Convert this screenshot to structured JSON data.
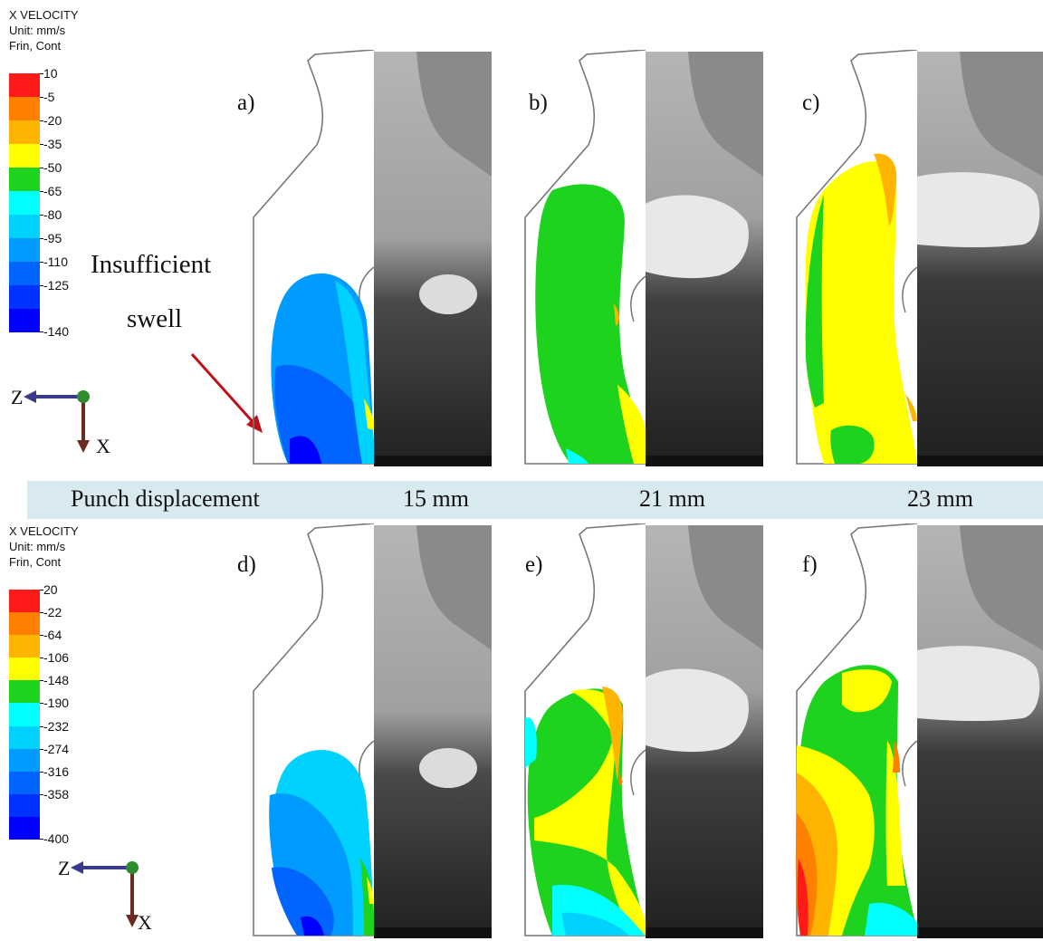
{
  "legend_top": {
    "title_lines": [
      "X VELOCITY",
      "Unit: mm/s",
      "Frin, Cont"
    ],
    "values": [
      "10",
      "-5",
      "-20",
      "-35",
      "-50",
      "-65",
      "-80",
      "-95",
      "-110",
      "-125",
      "-140"
    ],
    "colors": [
      "#ff1a1a",
      "#ff7f00",
      "#ffb400",
      "#ffff00",
      "#1ed31e",
      "#00ffff",
      "#00d2ff",
      "#009bff",
      "#0064ff",
      "#0032ff",
      "#0000ff"
    ]
  },
  "legend_bottom": {
    "title_lines": [
      "X VELOCITY",
      "Unit: mm/s",
      "Frin, Cont"
    ],
    "values": [
      "20",
      "-22",
      "-64",
      "-106",
      "-148",
      "-190",
      "-232",
      "-274",
      "-316",
      "-358",
      "-400"
    ],
    "colors": [
      "#ff1a1a",
      "#ff7f00",
      "#ffb400",
      "#ffff00",
      "#1ed31e",
      "#00ffff",
      "#00d2ff",
      "#009bff",
      "#0064ff",
      "#0032ff",
      "#0000ff"
    ]
  },
  "panels": {
    "a": {
      "label": "a)"
    },
    "b": {
      "label": "b)"
    },
    "c": {
      "label": "c)"
    },
    "d": {
      "label": "d)"
    },
    "e": {
      "label": "e)"
    },
    "f": {
      "label": "f)"
    }
  },
  "band": {
    "caption": "Punch displacement",
    "values": [
      "15 mm",
      "21 mm",
      "23 mm"
    ]
  },
  "annotation": {
    "line1": "Insufficient",
    "line2": "swell",
    "arrow_color": "#c0101a"
  },
  "axes": {
    "z_label": "Z",
    "x_label": "X",
    "z_arrow_color": "#3a3a8c",
    "x_arrow_color": "#6b2c20",
    "origin_color": "#2e8b2e"
  }
}
